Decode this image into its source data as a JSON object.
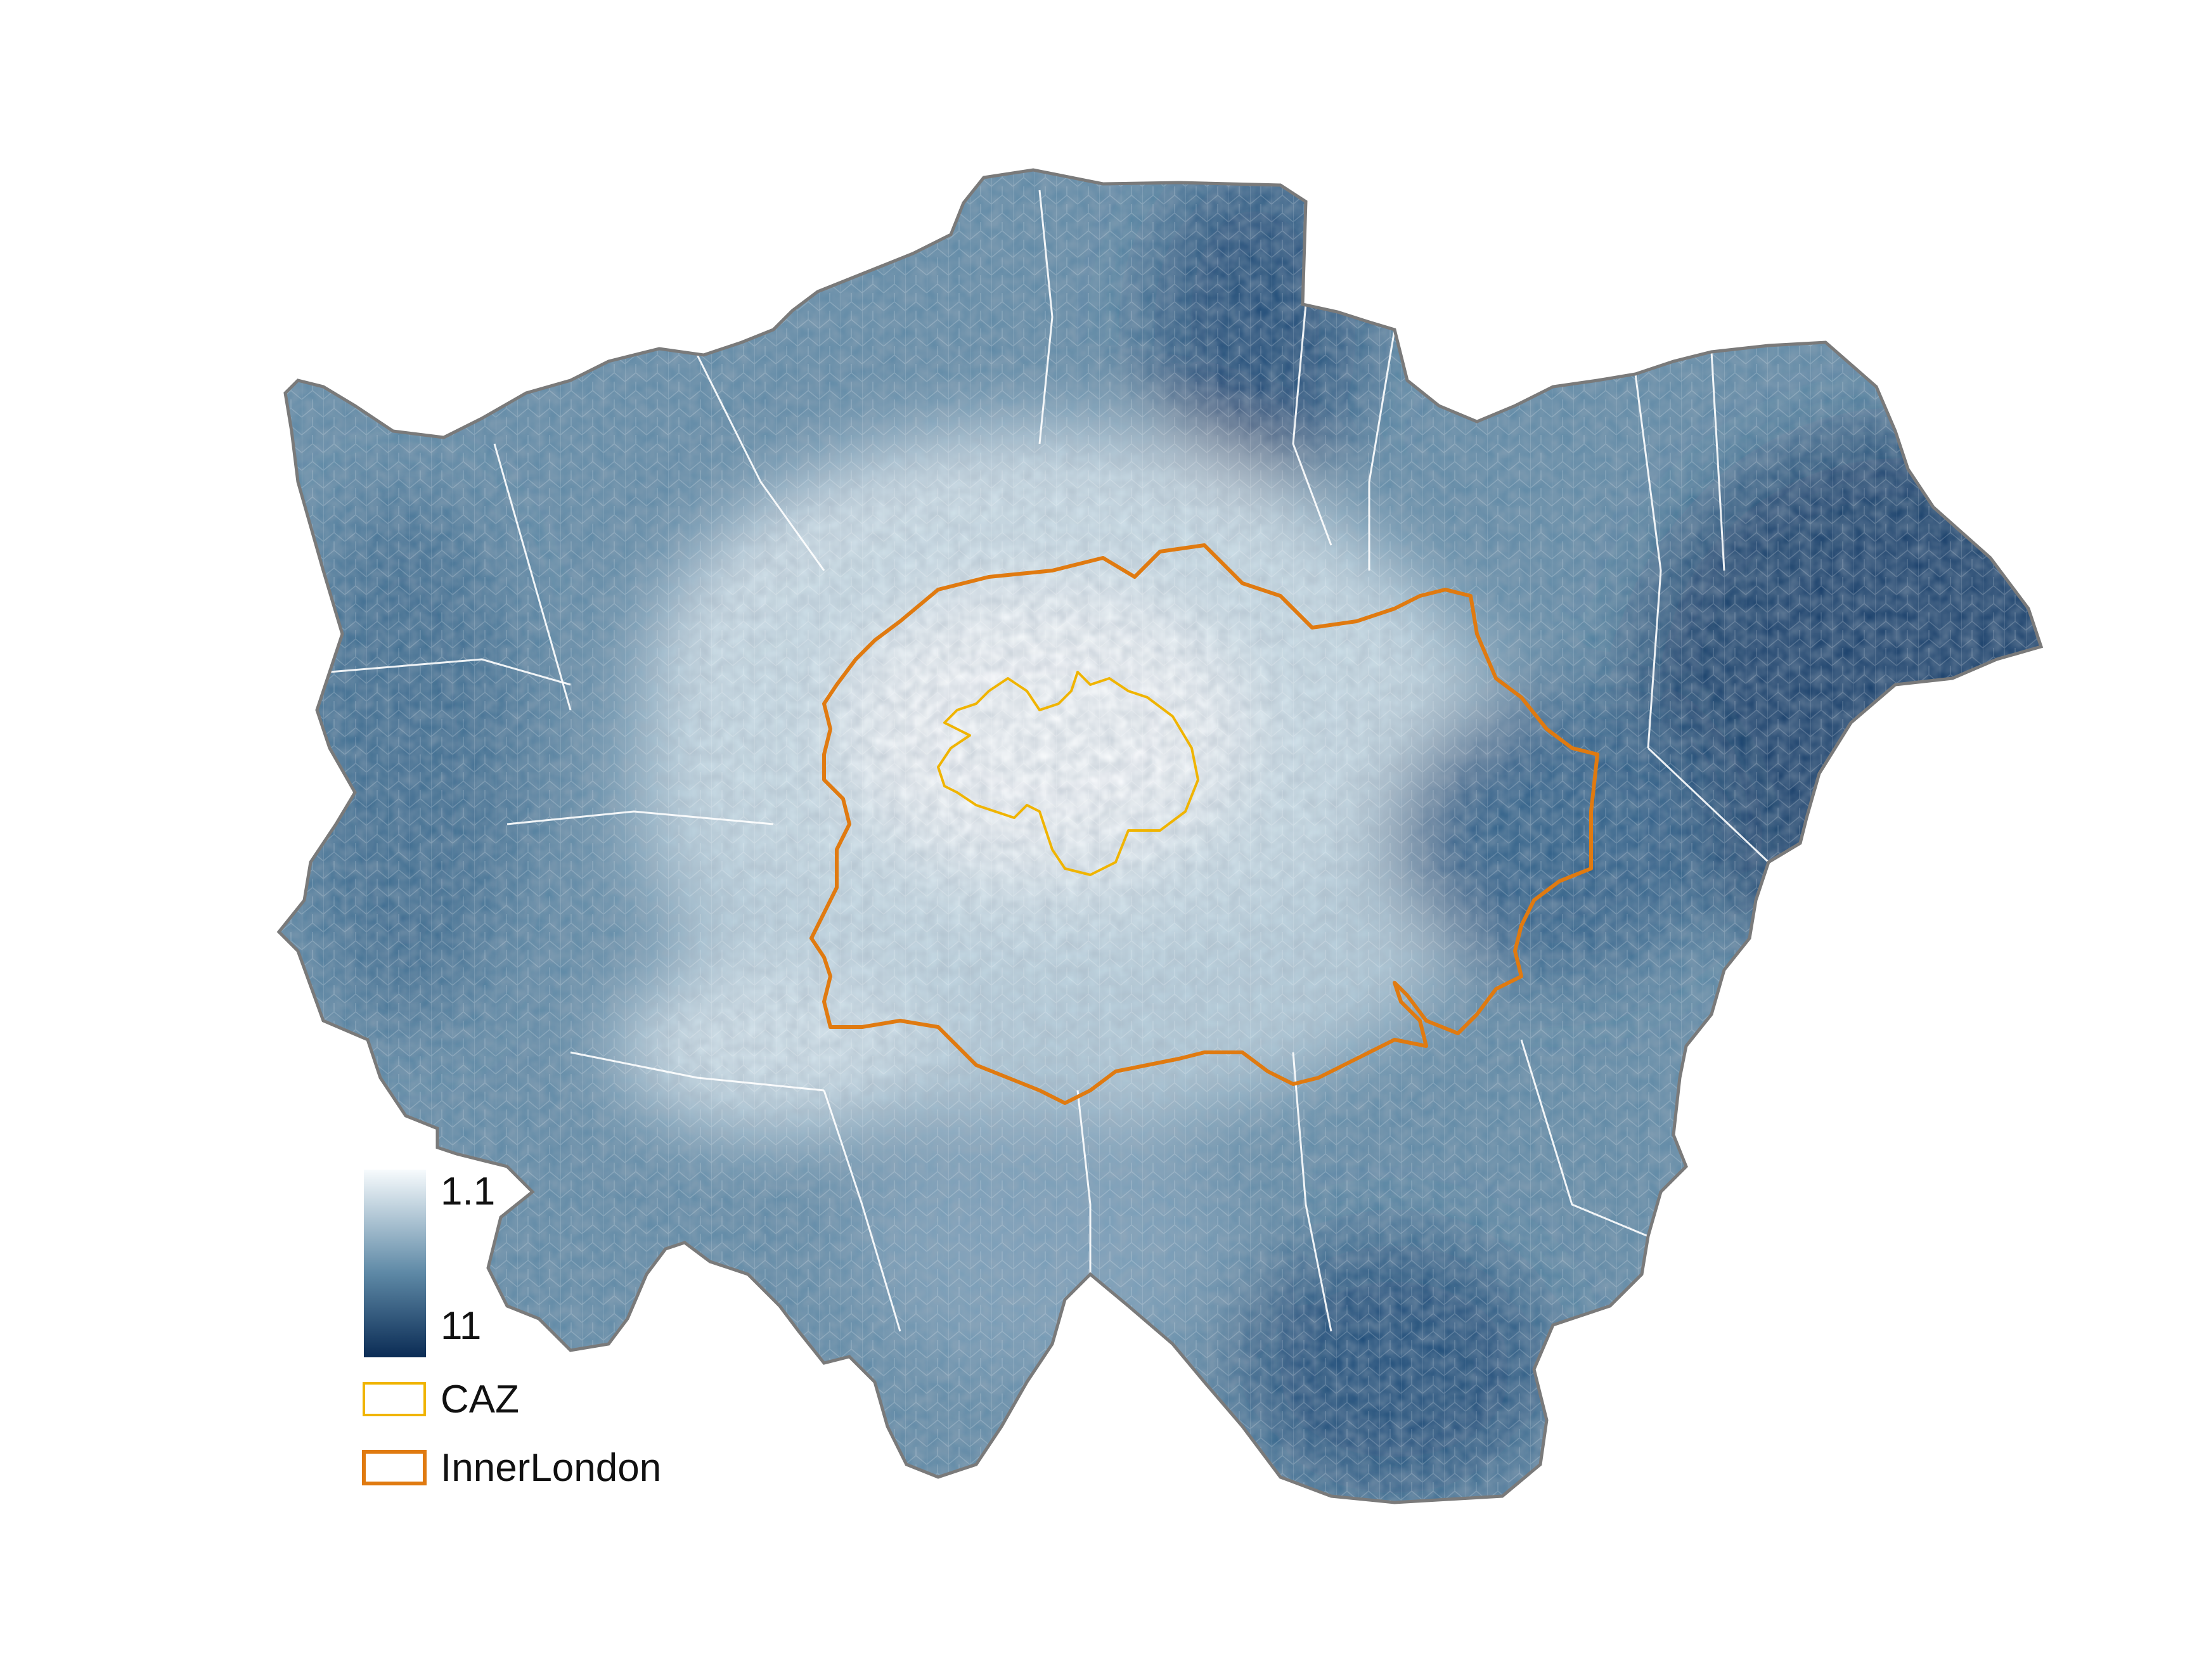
{
  "map": {
    "colors": {
      "background": "#ffffff",
      "outline": "#7a7a7a",
      "borough_border": "#ffffff",
      "caz": "#f0b400",
      "inner_london": "#e07a10",
      "ramp_low": "#f7fbfd",
      "ramp_mid": "#5e89a6",
      "ramp_high": "#0b2c55"
    }
  },
  "legend": {
    "scale": {
      "max_label": "1.1",
      "min_label": "11"
    },
    "items": [
      {
        "label": "CAZ",
        "color": "#f0b400"
      },
      {
        "label": "InnerLondon",
        "color": "#e07a10"
      }
    ]
  }
}
